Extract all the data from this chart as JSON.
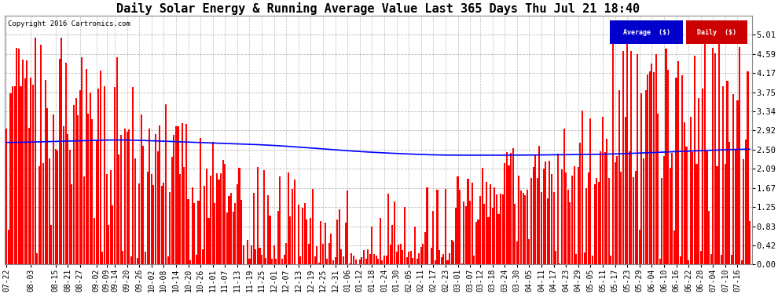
{
  "title": "Daily Solar Energy & Running Average Value Last 365 Days Thu Jul 21 18:40",
  "copyright": "Copyright 2016 Cartronics.com",
  "legend_avg": "Average  ($)",
  "legend_daily": "Daily  ($)",
  "ylim": [
    0.0,
    5.42
  ],
  "yticks": [
    0.0,
    0.42,
    0.83,
    1.25,
    1.67,
    2.09,
    2.5,
    2.92,
    3.34,
    3.75,
    4.17,
    4.59,
    5.01
  ],
  "bar_color": "#FF0000",
  "avg_color": "#0000FF",
  "bg_color": "#FFFFFF",
  "grid_color": "#BBBBBB",
  "title_fontsize": 11,
  "copyright_fontsize": 6.5,
  "tick_fontsize": 7.5,
  "num_bars": 365,
  "xtick_labels": [
    "07-22",
    "08-03",
    "08-15",
    "08-21",
    "08-27",
    "09-02",
    "09-09",
    "09-14",
    "09-20",
    "09-26",
    "10-02",
    "10-08",
    "10-14",
    "10-20",
    "10-26",
    "11-01",
    "11-07",
    "11-13",
    "11-19",
    "11-25",
    "12-01",
    "12-07",
    "12-13",
    "12-19",
    "12-25",
    "12-31",
    "01-06",
    "01-12",
    "01-18",
    "01-24",
    "01-30",
    "02-05",
    "02-11",
    "02-17",
    "02-23",
    "03-01",
    "03-07",
    "03-12",
    "03-18",
    "03-24",
    "03-30",
    "04-05",
    "04-11",
    "04-17",
    "04-23",
    "04-29",
    "05-05",
    "05-11",
    "05-17",
    "05-23",
    "05-29",
    "06-04",
    "06-10",
    "06-16",
    "06-22",
    "06-28",
    "07-04",
    "07-10",
    "07-16"
  ],
  "xtick_positions": [
    0,
    12,
    24,
    30,
    36,
    44,
    49,
    53,
    59,
    65,
    71,
    77,
    83,
    89,
    95,
    101,
    107,
    113,
    119,
    125,
    131,
    137,
    143,
    149,
    155,
    161,
    167,
    173,
    179,
    185,
    191,
    197,
    203,
    209,
    215,
    221,
    227,
    232,
    238,
    244,
    250,
    256,
    262,
    268,
    274,
    280,
    286,
    292,
    298,
    304,
    310,
    316,
    322,
    328,
    334,
    340,
    346,
    352,
    358
  ],
  "avg_curve_points": [
    [
      0,
      2.65
    ],
    [
      55,
      2.72
    ],
    [
      130,
      2.6
    ],
    [
      175,
      2.45
    ],
    [
      210,
      2.38
    ],
    [
      250,
      2.38
    ],
    [
      295,
      2.4
    ],
    [
      340,
      2.48
    ],
    [
      364,
      2.52
    ]
  ]
}
